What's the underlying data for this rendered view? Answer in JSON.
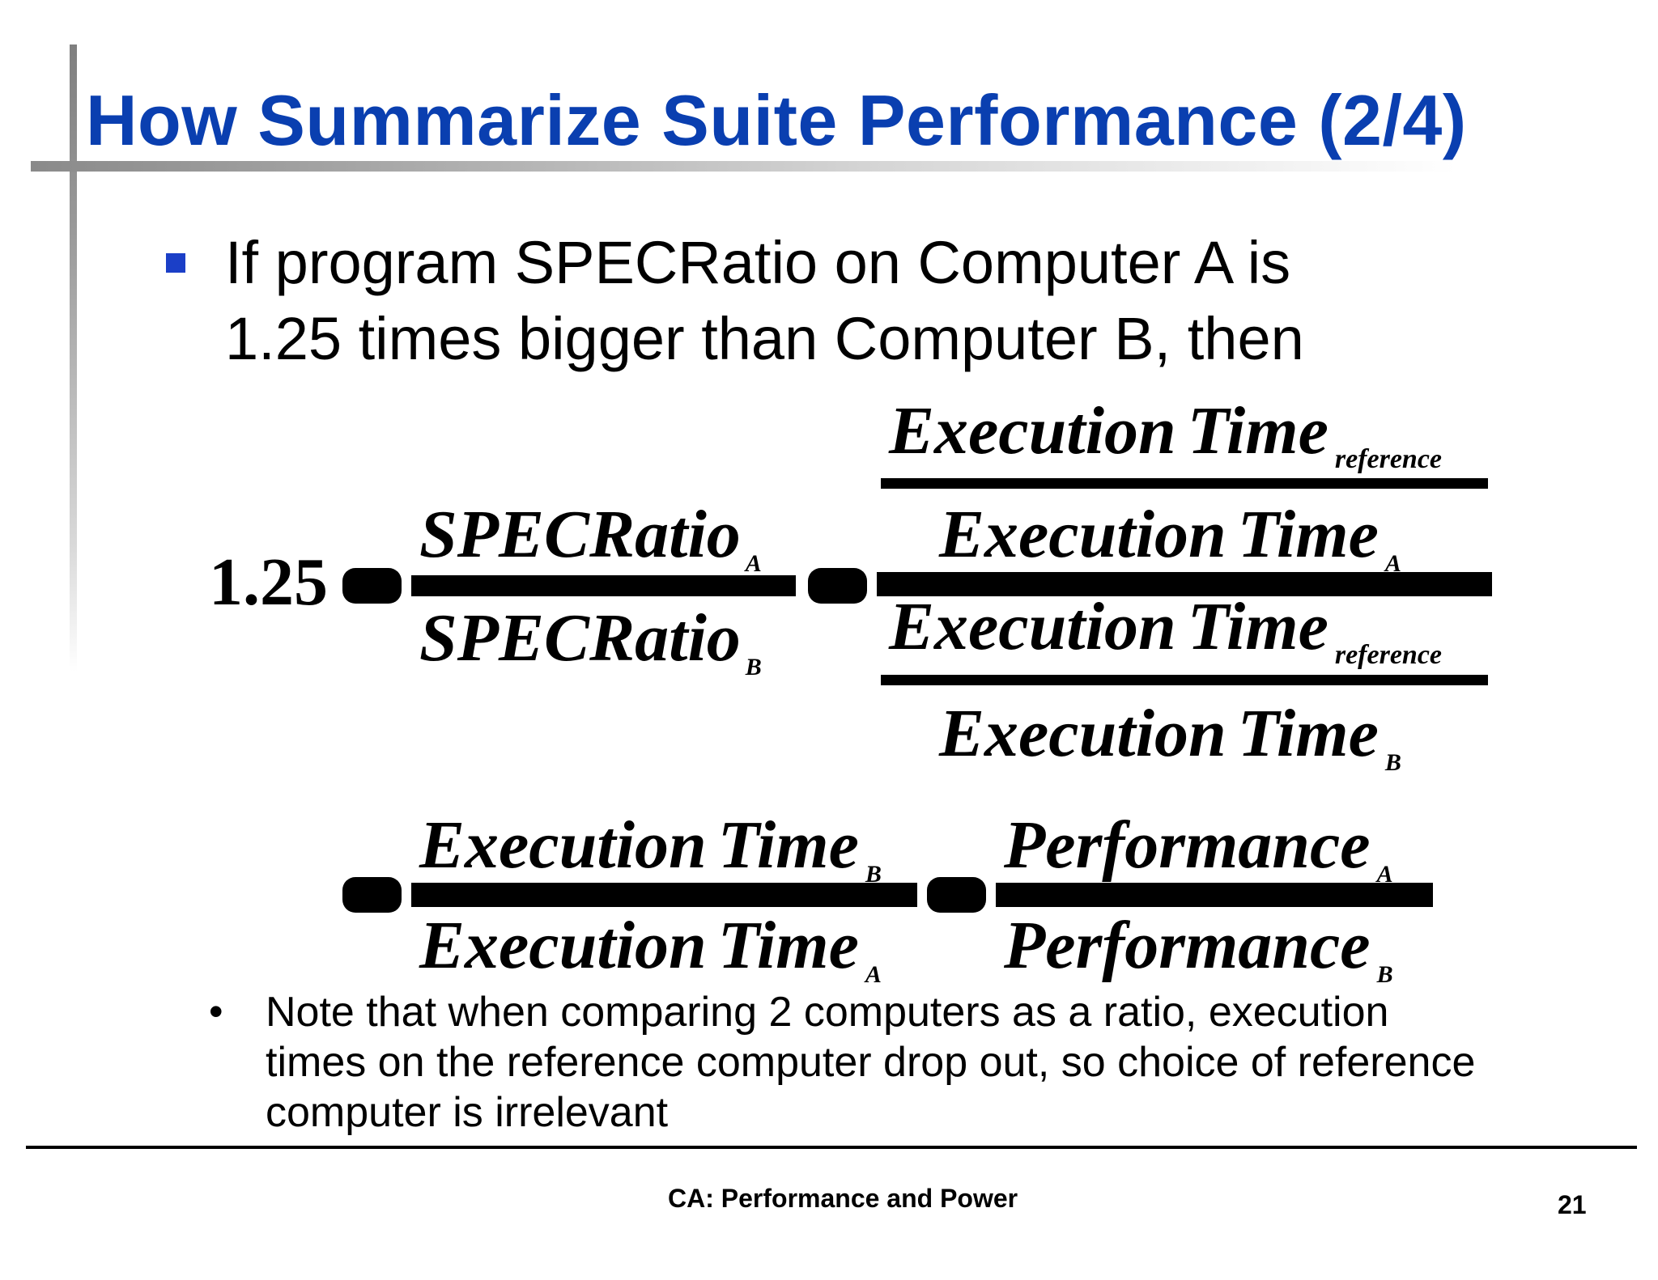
{
  "slide": {
    "title": "How Summarize Suite Performance (2/4)",
    "bullet_line1": "If program SPECRatio on Computer A is",
    "bullet_line2": "1.25 times bigger than Computer B, then",
    "note_dot": "•",
    "note_line1": "Note that when comparing 2 computers as a ratio, execution",
    "note_line2": "times on the reference computer drop out, so choice of reference",
    "note_line3": "computer is irrelevant",
    "footer_center": "CA: Performance and Power",
    "page_number": "21"
  },
  "equation": {
    "lhs_value": "1.25",
    "specratio": "SPECRatio",
    "execution": "Execution",
    "time": "Time",
    "performance": "Performance",
    "sub_a": "A",
    "sub_b": "B",
    "sub_reference": "reference"
  }
}
